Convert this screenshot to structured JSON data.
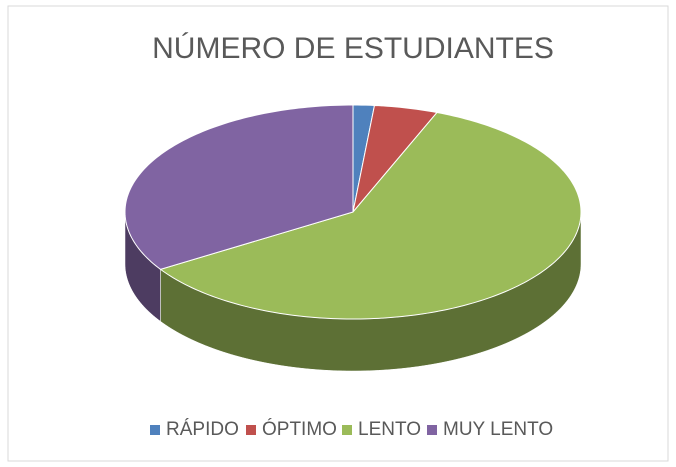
{
  "chart_data": {
    "type": "pie3d",
    "title": "NÚMERO DE ESTUDIANTES",
    "categories": [
      "RÁPIDO",
      "ÓPTIMO",
      "LENTO",
      "MUY LENTO"
    ],
    "values": [
      1.5,
      4.5,
      60,
      34
    ],
    "colors": [
      "#4f81bd",
      "#c0504d",
      "#9bbb59",
      "#8064a2"
    ],
    "legend": "bottom"
  }
}
